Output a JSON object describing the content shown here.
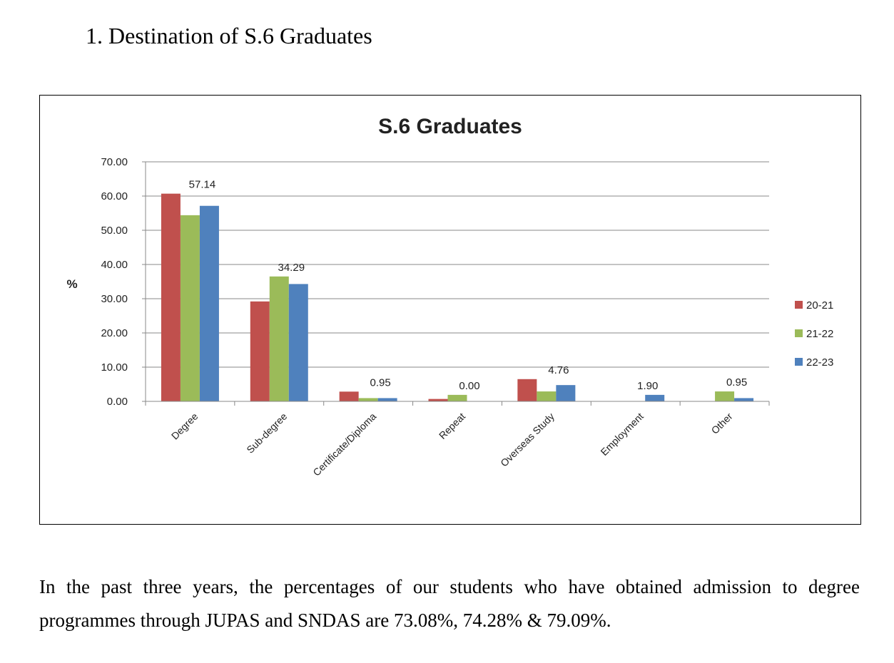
{
  "heading": "1.  Destination of S.6 Graduates",
  "paragraph": "In the past three years, the percentages of our students who have obtained admission to degree programmes through JUPAS and SNDAS are 73.08%, 74.28% & 79.09%.",
  "chart_data": {
    "type": "bar",
    "title": "S.6 Graduates",
    "ylabel": "%",
    "xlabel": "",
    "ylim": [
      0,
      70
    ],
    "yticks": [
      "0.00",
      "10.00",
      "20.00",
      "30.00",
      "40.00",
      "50.00",
      "60.00",
      "70.00"
    ],
    "grid": true,
    "legend": "right",
    "categories": [
      "Degree",
      "Sub-degree",
      "Certificate/Diploma",
      "Repeat",
      "Overseas Study",
      "Employment",
      "Other"
    ],
    "series": [
      {
        "name": "20-21",
        "color": "#c0504d",
        "values": [
          60.7,
          29.2,
          2.85,
          0.7,
          6.5,
          0,
          0
        ]
      },
      {
        "name": "21-22",
        "color": "#9bbb59",
        "values": [
          54.4,
          36.5,
          0.95,
          1.9,
          2.9,
          0,
          2.9
        ]
      },
      {
        "name": "22-23",
        "color": "#4f81bd",
        "values": [
          57.14,
          34.29,
          0.95,
          0.0,
          4.76,
          1.9,
          0.95
        ]
      }
    ],
    "data_labels": [
      "57.14",
      "34.29",
      "0.95",
      "0.00",
      "4.76",
      "1.90",
      "0.95"
    ]
  }
}
